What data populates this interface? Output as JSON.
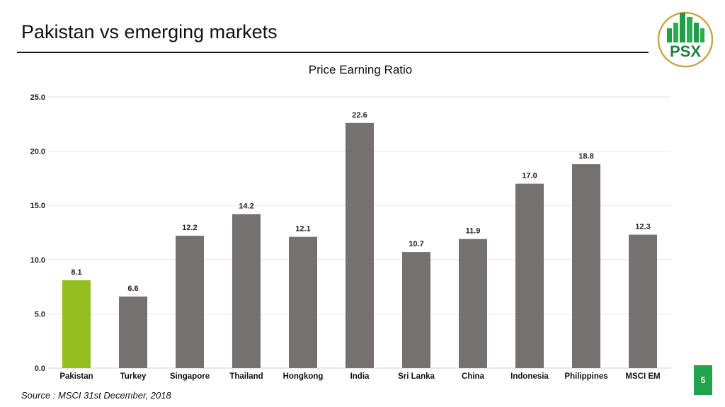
{
  "page": {
    "title": "Pakistan vs emerging markets",
    "source": "Source : MSCI 31st December, 2018",
    "page_number": "5",
    "logo_text": "PSX"
  },
  "colors": {
    "highlight_bar": "#93c01f",
    "default_bar": "#757170",
    "accent_green": "#22a24a",
    "logo_gold": "#c9a64c"
  },
  "chart_data": {
    "type": "bar",
    "title": "Price Earning Ratio",
    "xlabel": "",
    "ylabel": "",
    "categories": [
      "Pakistan",
      "Turkey",
      "Singapore",
      "Thailand",
      "Hongkong",
      "India",
      "Sri Lanka",
      "China",
      "Indonesia",
      "Philippines",
      "MSCI EM"
    ],
    "values": [
      8.1,
      6.6,
      12.2,
      14.2,
      12.1,
      22.6,
      10.7,
      11.9,
      17.0,
      18.8,
      12.3
    ],
    "value_labels": [
      "8.1",
      "6.6",
      "12.2",
      "14.2",
      "12.1",
      "22.6",
      "10.7",
      "11.9",
      "17.0",
      "18.8",
      "12.3"
    ],
    "highlight_category": "Pakistan",
    "ylim": [
      0,
      25
    ],
    "yticks": [
      0,
      5,
      10,
      15,
      20,
      25
    ],
    "ytick_labels": [
      "0.0",
      "5.0",
      "10.0",
      "15.0",
      "20.0",
      "25.0"
    ],
    "grid": true,
    "legend": "none"
  }
}
